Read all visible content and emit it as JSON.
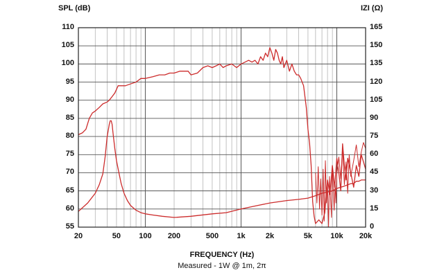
{
  "chart_data": {
    "type": "line",
    "y_left_label": "SPL (dB)",
    "y_right_label": "IZI (Ω)",
    "xlabel": "FREQUENCY (Hz)",
    "caption": "Measured - 1W @ 1m, 2π",
    "x_scale": "log",
    "xlim": [
      20,
      20000
    ],
    "ylim_left": [
      55,
      110
    ],
    "ylim_right": [
      0,
      165
    ],
    "grid": true,
    "line_color": "#cc2b2b",
    "x_ticks": [
      {
        "value": 20,
        "label": "20"
      },
      {
        "value": 50,
        "label": "50"
      },
      {
        "value": 100,
        "label": "100"
      },
      {
        "value": 200,
        "label": "200"
      },
      {
        "value": 500,
        "label": "500"
      },
      {
        "value": 1000,
        "label": "1k"
      },
      {
        "value": 2000,
        "label": "2k"
      },
      {
        "value": 5000,
        "label": "5k"
      },
      {
        "value": 10000,
        "label": "10k"
      },
      {
        "value": 20000,
        "label": "20k"
      }
    ],
    "y_left_ticks": [
      55,
      60,
      65,
      70,
      75,
      80,
      85,
      90,
      95,
      100,
      105,
      110
    ],
    "y_right_ticks": [
      0,
      15,
      30,
      45,
      60,
      75,
      90,
      105,
      120,
      135,
      150,
      165
    ],
    "series": [
      {
        "axis": "left",
        "x": [
          20,
          22,
          24,
          26,
          28,
          30,
          33,
          36,
          40,
          42,
          45,
          48,
          52,
          55,
          58,
          62,
          70,
          80,
          90,
          100,
          120,
          140,
          160,
          180,
          200,
          230,
          260,
          280,
          300,
          350,
          400,
          450,
          500,
          550,
          600,
          650,
          700,
          800,
          900,
          1000,
          1100,
          1200,
          1300,
          1400,
          1500,
          1600,
          1700,
          1800,
          1900,
          2000,
          2100,
          2200,
          2300,
          2400,
          2500,
          2600,
          2700,
          2800,
          3000,
          3200,
          3400,
          3600,
          3800,
          4000,
          4200,
          4500,
          4800,
          5000,
          5200,
          5400,
          5600,
          5800,
          6000,
          6500,
          7000,
          7500,
          8000,
          8500,
          9000,
          9500,
          10000,
          10500,
          11000,
          11500,
          12000,
          12500,
          13000,
          14000,
          15000,
          16000,
          17000,
          18000,
          19000,
          20000
        ],
        "values": [
          80.5,
          81,
          82,
          85,
          86.5,
          87,
          88,
          89,
          89.5,
          90,
          91,
          92,
          94,
          94,
          94,
          94,
          94.5,
          95,
          96,
          96,
          96.5,
          97,
          97,
          97.5,
          97.5,
          98,
          98,
          98,
          97,
          97.5,
          99,
          99.5,
          99,
          99.5,
          100,
          99,
          99.5,
          100,
          99,
          100,
          100.5,
          101,
          100.5,
          101,
          100,
          102,
          101,
          103,
          102,
          104.5,
          103,
          101,
          104,
          103,
          101,
          100,
          102,
          99,
          101,
          98,
          100,
          98,
          97,
          97,
          96,
          94,
          88,
          82,
          78,
          72,
          62,
          58,
          56,
          57,
          56,
          59,
          68,
          64,
          72,
          66,
          74,
          70,
          65,
          78,
          72,
          68,
          74,
          70,
          66,
          72,
          69,
          75,
          73,
          71
        ]
      },
      {
        "axis": "right",
        "x": [
          20,
          25,
          30,
          33,
          36,
          38,
          40,
          42,
          43,
          44,
          45,
          46,
          48,
          50,
          53,
          56,
          60,
          65,
          70,
          80,
          90,
          100,
          120,
          150,
          200,
          300,
          500,
          700,
          1000,
          1500,
          2000,
          3000,
          4000,
          5000,
          6000,
          7000,
          8000,
          9000,
          10000,
          11000,
          12000,
          13000,
          14000,
          15000,
          16000,
          17000,
          18000,
          20000
        ],
        "values": [
          13,
          20,
          28,
          35,
          44,
          58,
          75,
          85,
          88,
          88,
          85,
          78,
          65,
          55,
          45,
          36,
          28,
          22,
          18,
          14,
          12,
          11,
          10,
          9,
          8,
          9,
          11,
          12,
          15,
          18,
          20,
          22,
          23,
          24,
          26,
          28,
          29,
          30,
          32,
          33,
          34,
          35,
          36,
          36,
          38,
          38,
          39,
          39
        ]
      },
      {
        "axis": "right",
        "x": [
          6000,
          6200,
          6400,
          6600,
          6800,
          7000,
          7200,
          7400,
          7600,
          7800,
          8000,
          8200,
          8400,
          8600,
          8800,
          9000,
          9200,
          9400,
          9600,
          9800,
          10000,
          10500,
          11000,
          11500,
          12000,
          12500,
          13000,
          13500,
          14000,
          15000,
          16000,
          17000,
          18000,
          19000,
          20000
        ],
        "values": [
          45,
          20,
          50,
          15,
          40,
          10,
          48,
          5,
          55,
          20,
          35,
          0,
          42,
          25,
          8,
          50,
          30,
          14,
          36,
          20,
          44,
          58,
          40,
          66,
          35,
          54,
          28,
          60,
          42,
          55,
          68,
          50,
          62,
          70,
          65
        ]
      }
    ]
  }
}
